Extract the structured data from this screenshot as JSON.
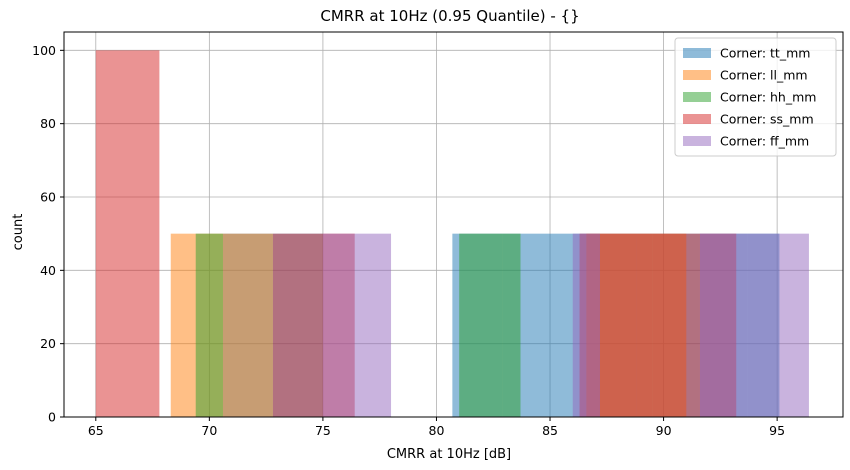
{
  "chart_data": {
    "type": "histogram",
    "title": "CMRR at 10Hz (0.95 Quantile) - {}",
    "xlabel": "CMRR at 10Hz [dB]",
    "ylabel": "count",
    "xlim": [
      63.6,
      97.9
    ],
    "ylim": [
      0,
      105
    ],
    "xticks": [
      65,
      70,
      75,
      80,
      85,
      90,
      95
    ],
    "yticks": [
      0,
      20,
      40,
      60,
      80,
      100
    ],
    "grid": true,
    "legend_position": "top-right",
    "bar_alpha": 0.5,
    "series": [
      {
        "name": "Corner: tt_mm",
        "color": "#1f77b4",
        "bins": [
          {
            "x0": 70.6,
            "x1": 72.8,
            "count": 50
          },
          {
            "x0": 72.8,
            "x1": 75.0,
            "count": 50
          },
          {
            "x0": 80.7,
            "x1": 82.9,
            "count": 50
          },
          {
            "x0": 82.9,
            "x1": 85.0,
            "count": 50
          },
          {
            "x0": 85.0,
            "x1": 87.2,
            "count": 50
          },
          {
            "x0": 87.2,
            "x1": 89.4,
            "count": 50
          },
          {
            "x0": 89.4,
            "x1": 91.6,
            "count": 50
          },
          {
            "x0": 91.6,
            "x1": 93.7,
            "count": 50
          },
          {
            "x0": 93.7,
            "x1": 95.1,
            "count": 50
          }
        ]
      },
      {
        "name": "Corner: ll_mm",
        "color": "#ff7f0e",
        "bins": [
          {
            "x0": 68.3,
            "x1": 70.6,
            "count": 50
          },
          {
            "x0": 70.6,
            "x1": 72.8,
            "count": 50
          },
          {
            "x0": 86.6,
            "x1": 88.8,
            "count": 50
          },
          {
            "x0": 88.8,
            "x1": 91.0,
            "count": 50
          }
        ]
      },
      {
        "name": "Corner: hh_mm",
        "color": "#2ca02c",
        "bins": [
          {
            "x0": 69.4,
            "x1": 70.6,
            "count": 50
          },
          {
            "x0": 81.0,
            "x1": 83.7,
            "count": 50
          }
        ]
      },
      {
        "name": "Corner: ss_mm",
        "color": "#d62728",
        "bins": [
          {
            "x0": 65.0,
            "x1": 67.8,
            "count": 100
          },
          {
            "x0": 72.8,
            "x1": 76.4,
            "count": 50
          },
          {
            "x0": 86.3,
            "x1": 89.5,
            "count": 50
          },
          {
            "x0": 89.5,
            "x1": 93.2,
            "count": 50
          }
        ]
      },
      {
        "name": "Corner: ff_mm",
        "color": "#9467bd",
        "bins": [
          {
            "x0": 75.0,
            "x1": 78.0,
            "count": 50
          },
          {
            "x0": 86.0,
            "x1": 87.2,
            "count": 50
          },
          {
            "x0": 91.6,
            "x1": 93.7,
            "count": 50
          },
          {
            "x0": 93.7,
            "x1": 96.4,
            "count": 50
          }
        ]
      }
    ]
  }
}
